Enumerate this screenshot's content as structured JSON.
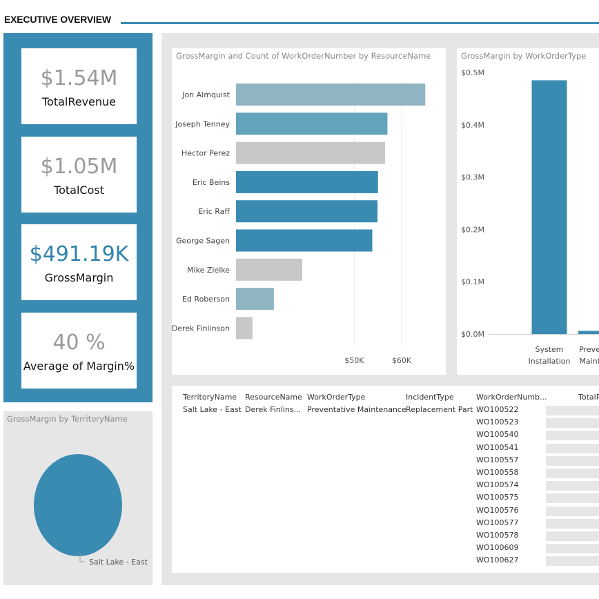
{
  "header": {
    "title": "EXECUTIVE OVERVIEW"
  },
  "kpis": [
    {
      "value": "$1.54M",
      "label": "TotalRevenue"
    },
    {
      "value": "$1.05M",
      "label": "TotalCost"
    },
    {
      "value": "$491.19K",
      "label": "GrossMargin"
    },
    {
      "value": "40 %",
      "label": "Average of Margin%"
    }
  ],
  "colors": {
    "accent": "#3a8bb2",
    "light_teal": "#8fb5c3",
    "mid_teal": "#63a3bc",
    "gray": "#c8c8c8",
    "panel_bg": "#e6e6e6"
  },
  "chart_data": [
    {
      "type": "bar",
      "orientation": "horizontal",
      "title": "GrossMargin and Count of WorkOrderNumber by ResourceName",
      "categories": [
        "Jon Almquist",
        "Joseph Tenney",
        "Hector Perez",
        "Eric Beins",
        "Eric Raff",
        "George Sagen",
        "Mike Zielke",
        "Ed Roberson",
        "Derek Finlinson"
      ],
      "values": [
        65000,
        57000,
        56500,
        55000,
        54900,
        53800,
        39000,
        33000,
        28500
      ],
      "xticks": [
        "$50K",
        "$60K"
      ],
      "xtick_values": [
        50000,
        60000
      ],
      "xlim": [
        25000,
        67000
      ],
      "colors": [
        "#8fb5c3",
        "#63a3bc",
        "#c8c8c8",
        "#3a8bb2",
        "#3a8bb2",
        "#3a8bb2",
        "#c8c8c8",
        "#8fb5c3",
        "#c8c8c8"
      ]
    },
    {
      "type": "bar",
      "title": "GrossMargin by WorkOrderType",
      "categories": [
        [
          "System",
          "Installation"
        ],
        [
          "Preven",
          "Mainte"
        ]
      ],
      "values": [
        485000,
        6000
      ],
      "yticks": [
        "$0.5M",
        "$0.4M",
        "$0.3M",
        "$0.2M",
        "$0.1M",
        "$0.0M"
      ],
      "ytick_values": [
        500000,
        400000,
        300000,
        200000,
        100000,
        0
      ],
      "ylim": [
        0,
        500000
      ]
    },
    {
      "type": "pie",
      "title": "GrossMargin by TerritoryName",
      "slices": [
        {
          "label": "Salt Lake - East",
          "value": 491190
        }
      ]
    }
  ],
  "table": {
    "headers": [
      "TerritoryName",
      "ResourceName",
      "WorkOrderType",
      "IncidentType",
      "WorkOrderNumb...",
      "TotalR"
    ],
    "first_row": [
      "Salt Lake - East",
      "Derek Finlins...",
      "Preventative Maintenance",
      "Replacement Part"
    ],
    "work_orders": [
      "WO100522",
      "WO100523",
      "WO100540",
      "WO100541",
      "WO100557",
      "WO100558",
      "WO100574",
      "WO100575",
      "WO100576",
      "WO100577",
      "WO100578",
      "WO100609",
      "WO100627"
    ]
  }
}
